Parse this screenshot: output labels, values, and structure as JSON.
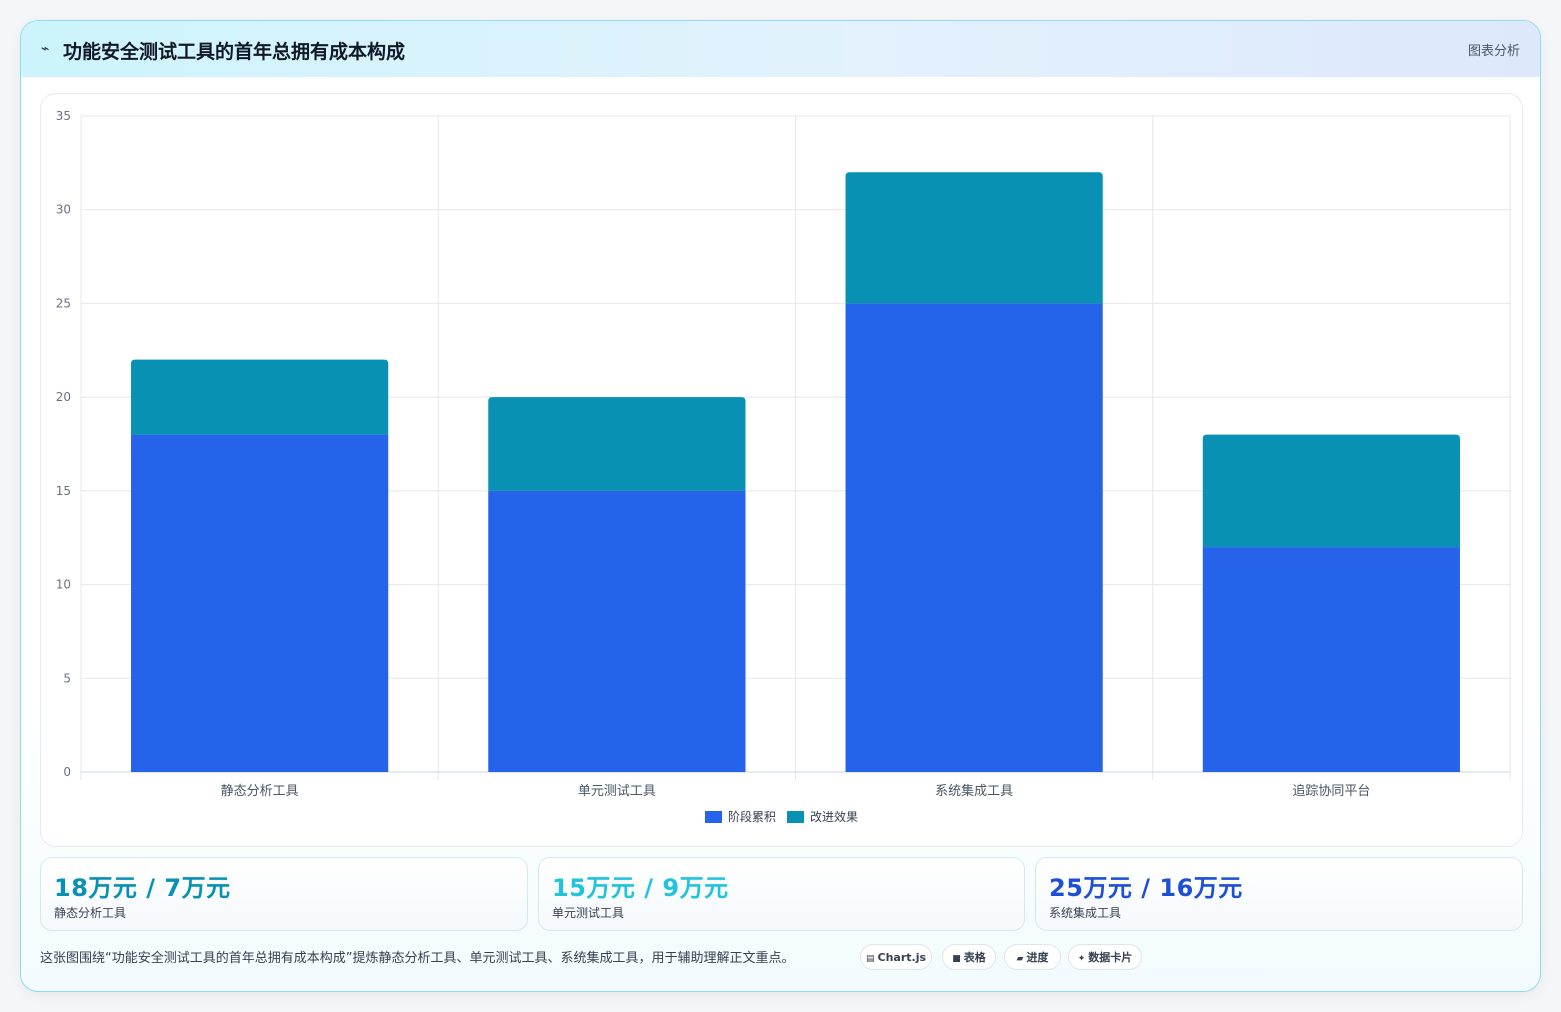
{
  "header": {
    "icon": "⌁",
    "title": "功能安全测试工具的首年总拥有成本构成",
    "tag": "图表分析"
  },
  "chart_data": {
    "type": "bar",
    "stacked": true,
    "categories": [
      "静态分析工具",
      "单元测试工具",
      "系统集成工具",
      "追踪协同平台"
    ],
    "series": [
      {
        "name": "阶段累积",
        "values": [
          18,
          15,
          25,
          12
        ],
        "color": "#2563eb"
      },
      {
        "name": "改进效果",
        "values": [
          4,
          5,
          7,
          6
        ],
        "color": "#0891b2"
      }
    ],
    "ylim": [
      0,
      35
    ],
    "yticks": [
      0,
      5,
      10,
      15,
      20,
      25,
      30,
      35
    ],
    "grid": true,
    "legend_position": "bottom"
  },
  "stats": [
    {
      "value": "18万元 / 7万元",
      "label": "静态分析工具",
      "color": "#0891b2"
    },
    {
      "value": "15万元 / 9万元",
      "label": "单元测试工具",
      "color": "#22c3dc"
    },
    {
      "value": "25万元 / 16万元",
      "label": "系统集成工具",
      "color": "#1d4ed8"
    }
  ],
  "caption": "这张图围绕“功能安全测试工具的首年总拥有成本构成”提炼静态分析工具、单元测试工具、系统集成工具，用于辅助理解正文重点。",
  "pills": [
    {
      "icon": "▤",
      "label": "Chart.js"
    },
    {
      "icon": "■",
      "label": "表格"
    },
    {
      "icon": "▰",
      "label": "进度"
    },
    {
      "icon": "✦",
      "label": "数据卡片"
    }
  ]
}
